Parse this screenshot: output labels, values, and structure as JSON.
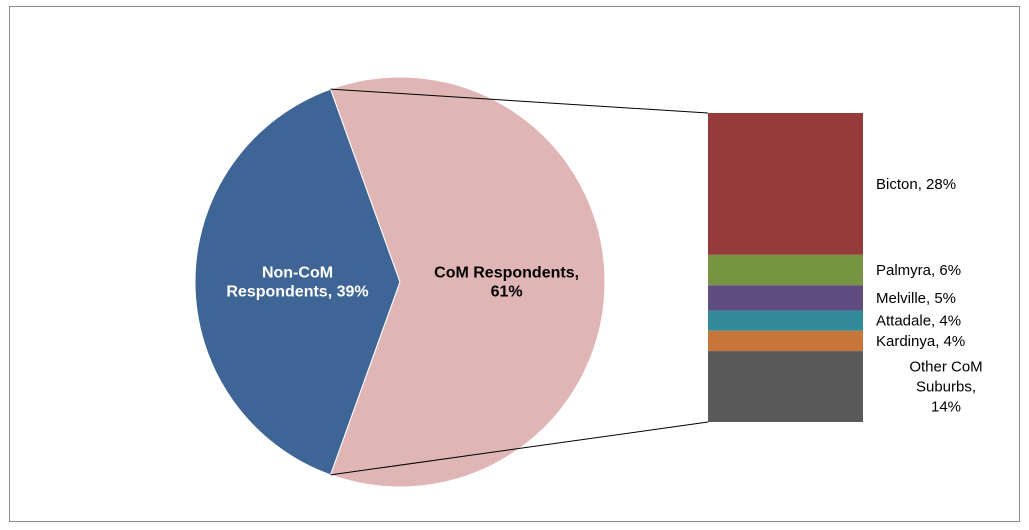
{
  "chart_data": {
    "type": "pie",
    "variant": "bar-of-pie",
    "pie": {
      "slices": [
        {
          "label": "Non-CoM Respondents",
          "value": 39,
          "display": "Non-CoM Respondents, 39%",
          "lines": [
            "Non-CoM",
            "Respondents, 39%"
          ],
          "color": "#3e6595",
          "text_color": "#ffffff"
        },
        {
          "label": "CoM Respondents",
          "value": 61,
          "display": "CoM Respondents, 61%",
          "lines": [
            "CoM Respondents,",
            "61%"
          ],
          "color": "#dfb5b5",
          "text_color": "#000000"
        }
      ]
    },
    "bar": {
      "breakdown_of": "CoM Respondents",
      "segments": [
        {
          "label": "Bicton",
          "value": 28,
          "display": "Bicton, 28%",
          "lines": [
            "Bicton, 28%"
          ],
          "color": "#953b3b"
        },
        {
          "label": "Palmyra",
          "value": 6,
          "display": "Palmyra, 6%",
          "lines": [
            "Palmyra, 6%"
          ],
          "color": "#779443"
        },
        {
          "label": "Melville",
          "value": 5,
          "display": "Melville, 5%",
          "lines": [
            "Melville, 5%"
          ],
          "color": "#614c7f"
        },
        {
          "label": "Attadale",
          "value": 4,
          "display": "Attadale, 4%",
          "lines": [
            "Attadale, 4%"
          ],
          "color": "#338b99"
        },
        {
          "label": "Kardinya",
          "value": 4,
          "display": "Kardinya, 4%",
          "lines": [
            "Kardinya, 4%"
          ],
          "color": "#c8753a"
        },
        {
          "label": "Other CoM Suburbs",
          "value": 14,
          "display": "Other CoM Suburbs, 14%",
          "lines": [
            "Other CoM",
            "Suburbs,",
            "14%"
          ],
          "color": "#595959"
        }
      ]
    },
    "connector_color": "#000000"
  }
}
